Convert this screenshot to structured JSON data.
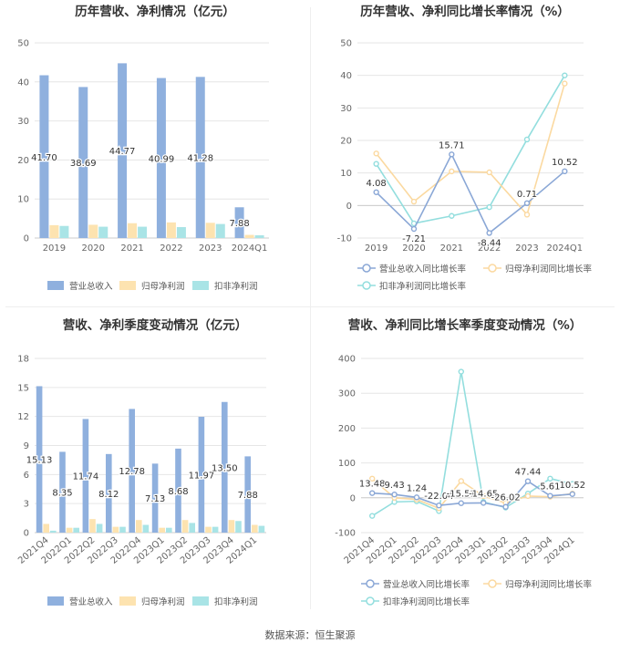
{
  "source": "数据来源：恒生聚源",
  "chart_data": [
    {
      "type": "bar",
      "title": "历年营收、净利情况（亿元）",
      "categories": [
        "2019",
        "2020",
        "2021",
        "2022",
        "2023",
        "2024Q1"
      ],
      "ylim": [
        0,
        50
      ],
      "yticks": [
        0,
        10,
        20,
        30,
        40,
        50
      ],
      "grid": true,
      "legend_position": "bottom",
      "series": [
        {
          "name": "营业总收入",
          "color": "#8fb0de",
          "values": [
            41.7,
            38.69,
            44.77,
            40.99,
            41.28,
            7.88
          ],
          "labels": [
            "41.70",
            "38.69",
            "44.77",
            "40.99",
            "41.28",
            "7.88"
          ]
        },
        {
          "name": "归母净利润",
          "color": "#fde3b0",
          "values": [
            3.3,
            3.4,
            3.8,
            4.0,
            3.9,
            0.8
          ]
        },
        {
          "name": "扣非净利润",
          "color": "#a9e4e6",
          "values": [
            3.1,
            2.9,
            2.9,
            2.8,
            3.6,
            0.7
          ]
        }
      ]
    },
    {
      "type": "line",
      "title": "历年营收、净利同比增长率情况（%）",
      "categories": [
        "2019",
        "2020",
        "2021",
        "2022",
        "2023",
        "2024Q1"
      ],
      "ylim": [
        -10,
        50
      ],
      "yticks": [
        -10,
        0,
        10,
        20,
        30,
        40,
        50
      ],
      "grid": true,
      "legend_position": "bottom",
      "series": [
        {
          "name": "营业总收入同比增长率",
          "color": "#8aa7d6",
          "values": [
            4.08,
            -7.21,
            15.71,
            -8.44,
            0.71,
            10.52
          ],
          "labels": [
            "4.08",
            "-7.21",
            "15.71",
            "-8.44",
            "0.71",
            "10.52"
          ]
        },
        {
          "name": "归母净利润同比增长率",
          "color": "#fbd9a0",
          "values": [
            16.0,
            1.2,
            10.5,
            10.2,
            -2.8,
            37.5
          ]
        },
        {
          "name": "扣非净利润同比增长率",
          "color": "#93dede",
          "values": [
            12.8,
            -5.5,
            -3.2,
            -0.5,
            20.3,
            40.0
          ]
        }
      ]
    },
    {
      "type": "bar",
      "title": "营收、净利季度变动情况（亿元）",
      "categories": [
        "2021Q4",
        "2022Q1",
        "2022Q2",
        "2022Q3",
        "2022Q4",
        "2023Q1",
        "2023Q2",
        "2023Q3",
        "2023Q4",
        "2024Q1"
      ],
      "ylim": [
        0,
        18
      ],
      "yticks": [
        0,
        3,
        6,
        9,
        12,
        15,
        18
      ],
      "grid": true,
      "legend_position": "bottom",
      "series": [
        {
          "name": "营业总收入",
          "color": "#8fb0de",
          "values": [
            15.13,
            8.35,
            11.74,
            8.12,
            12.78,
            7.13,
            8.68,
            11.97,
            13.5,
            7.88
          ],
          "labels": [
            "15.13",
            "8.35",
            "11.74",
            "8.12",
            "12.78",
            "7.13",
            "8.68",
            "11.97",
            "13.50",
            "7.88"
          ]
        },
        {
          "name": "归母净利润",
          "color": "#fde3b0",
          "values": [
            0.9,
            0.5,
            1.4,
            0.6,
            1.3,
            0.5,
            1.3,
            0.6,
            1.3,
            0.8
          ]
        },
        {
          "name": "扣非净利润",
          "color": "#a9e4e6",
          "values": [
            0.2,
            0.5,
            0.9,
            0.6,
            0.8,
            0.5,
            1.0,
            0.6,
            1.2,
            0.7
          ]
        }
      ]
    },
    {
      "type": "line",
      "title": "营收、净利同比增长率季度变动情况（%）",
      "categories": [
        "2021Q4",
        "2022Q1",
        "2022Q2",
        "2022Q3",
        "2022Q4",
        "2023Q1",
        "2023Q2",
        "2023Q3",
        "2023Q4",
        "2024Q1"
      ],
      "ylim": [
        -100,
        400
      ],
      "yticks": [
        -100,
        0,
        100,
        200,
        300,
        400
      ],
      "grid": true,
      "legend_position": "bottom",
      "series": [
        {
          "name": "营业总收入同比增长率",
          "color": "#8aa7d6",
          "values": [
            13.48,
            9.43,
            1.24,
            -22.04,
            -15.51,
            -14.65,
            -26.02,
            47.44,
            5.61,
            10.52
          ],
          "labels": [
            "13.48",
            "9.43",
            "1.24",
            "-22.04",
            "-15.51",
            "-14.65",
            "-26.02",
            "47.44",
            "5.61",
            "10.52"
          ]
        },
        {
          "name": "归母净利润同比增长率",
          "color": "#fbd9a0",
          "values": [
            55,
            0,
            -5,
            -30,
            48,
            5,
            -15,
            5,
            3,
            12
          ]
        },
        {
          "name": "扣非净利润同比增长率",
          "color": "#93dede",
          "values": [
            -52,
            -12,
            -10,
            -38,
            362,
            -12,
            -28,
            12,
            55,
            40
          ]
        }
      ]
    }
  ]
}
